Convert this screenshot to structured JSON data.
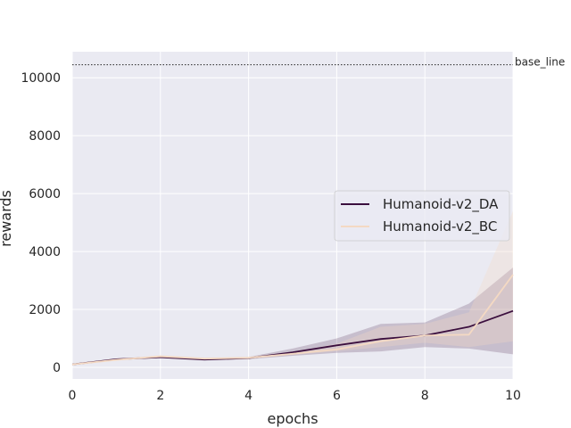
{
  "chart_data": {
    "type": "line",
    "xlabel": "epochs",
    "ylabel": "rewards",
    "xlim": [
      0,
      10
    ],
    "ylim": [
      -400,
      10900
    ],
    "xticks": [
      0,
      2,
      4,
      6,
      8,
      10
    ],
    "yticks": [
      0,
      2000,
      4000,
      6000,
      8000,
      10000
    ],
    "grid": true,
    "legend_position": "center-right",
    "x": [
      0,
      1,
      2,
      3,
      4,
      5,
      6,
      7,
      8,
      9,
      10
    ],
    "series": [
      {
        "name": "Humanoid-v2_DA",
        "color": "#3b0f3e",
        "values": [
          100,
          280,
          350,
          270,
          320,
          520,
          760,
          980,
          1100,
          1400,
          1950
        ],
        "lower": [
          80,
          260,
          320,
          240,
          280,
          400,
          500,
          550,
          700,
          650,
          450
        ],
        "upper": [
          130,
          310,
          390,
          300,
          360,
          650,
          1000,
          1500,
          1550,
          2200,
          3450
        ]
      },
      {
        "name": "Humanoid-v2_BC",
        "color": "#f4d9c3",
        "values": [
          100,
          260,
          380,
          300,
          330,
          470,
          620,
          900,
          1100,
          1130,
          3200
        ],
        "lower": [
          80,
          240,
          340,
          270,
          290,
          430,
          560,
          700,
          850,
          700,
          900
        ],
        "upper": [
          130,
          290,
          420,
          340,
          370,
          520,
          820,
          1400,
          1500,
          1900,
          5400
        ]
      }
    ],
    "baseline": {
      "label": "base_line",
      "value": 10450
    }
  }
}
